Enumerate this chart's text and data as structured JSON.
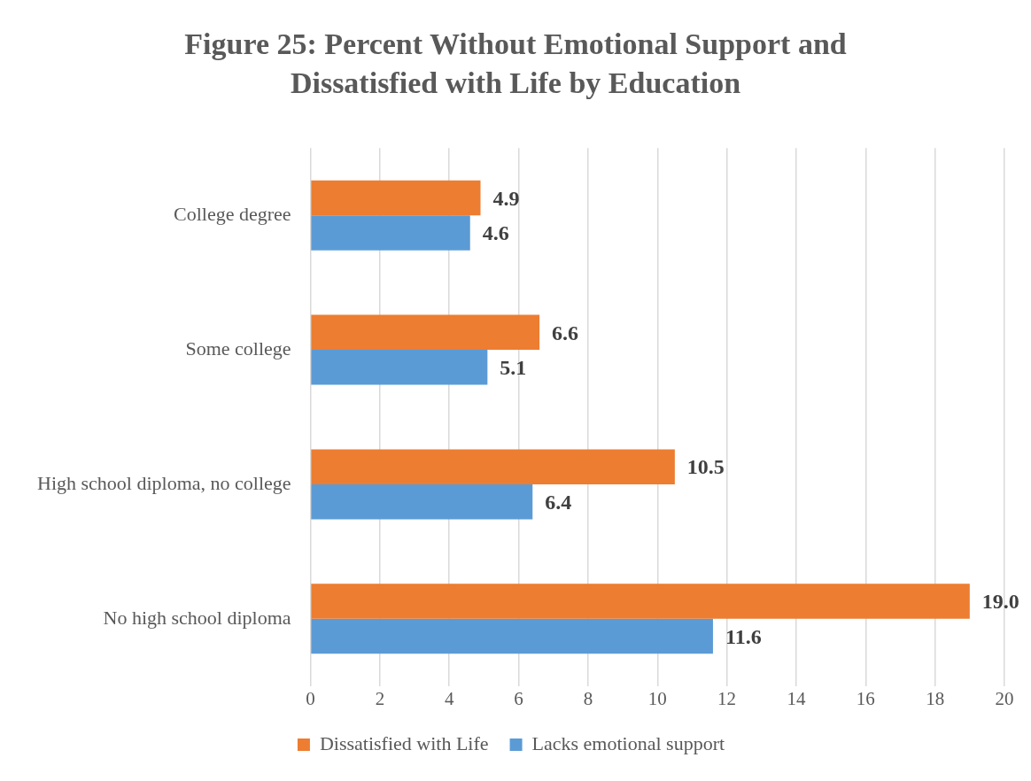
{
  "chart_data": {
    "type": "bar",
    "orientation": "horizontal",
    "title": "Figure 25: Percent Without Emotional Support and Dissatisfied with Life by Education",
    "categories": [
      "College degree",
      "Some college",
      "High school diploma, no college",
      "No high school diploma"
    ],
    "series": [
      {
        "name": "Dissatisfied with Life",
        "color": "#ed7d31",
        "values": [
          4.9,
          6.6,
          10.5,
          19.0
        ],
        "value_labels": [
          "4.9",
          "6.6",
          "10.5",
          "19.0"
        ]
      },
      {
        "name": "Lacks emotional support",
        "color": "#5b9bd5",
        "values": [
          4.6,
          5.1,
          6.4,
          11.6
        ],
        "value_labels": [
          "4.6",
          "5.1",
          "6.4",
          "11.6"
        ]
      }
    ],
    "xlim": [
      0,
      20
    ],
    "xticks": [
      0,
      2,
      4,
      6,
      8,
      10,
      12,
      14,
      16,
      18,
      20
    ],
    "grid": "x",
    "legend": "bottom"
  }
}
